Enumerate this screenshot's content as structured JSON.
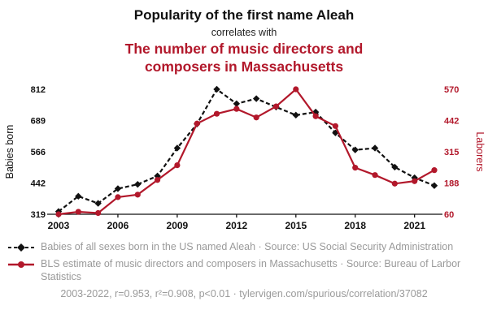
{
  "header": {
    "title": "Popularity of the first name Aleah",
    "subtitle": "correlates with",
    "correlate_title": "The number of music directors and composers in Massachusetts"
  },
  "colors": {
    "accent_red": "#b2182b",
    "text_gray": "#9a9a9a",
    "ink": "#111111"
  },
  "chart_data": {
    "type": "line",
    "title": "Popularity of the first name Aleah correlates with The number of music directors and composers in Massachusetts",
    "x": [
      2003,
      2004,
      2005,
      2006,
      2007,
      2008,
      2009,
      2010,
      2011,
      2012,
      2013,
      2014,
      2015,
      2016,
      2017,
      2018,
      2019,
      2020,
      2021,
      2022
    ],
    "x_ticks": [
      2003,
      2006,
      2009,
      2012,
      2015,
      2018,
      2021
    ],
    "left_axis": {
      "label": "Babies born",
      "ticks": [
        319,
        442,
        566,
        689,
        812
      ],
      "range": [
        319,
        812
      ]
    },
    "right_axis": {
      "label": "Laborers",
      "ticks": [
        60,
        188,
        315,
        442,
        570
      ],
      "range": [
        60,
        570
      ],
      "color": "#b2182b"
    },
    "series": [
      {
        "name": "Babies of all sexes born in the US named Aleah",
        "axis": "left",
        "color": "#111111",
        "style": "dashed-diamond",
        "values": [
          330,
          390,
          362,
          420,
          437,
          470,
          580,
          675,
          812,
          755,
          775,
          742,
          710,
          722,
          640,
          573,
          580,
          505,
          463,
          432
        ]
      },
      {
        "name": "BLS estimate of music directors and composers in Massachusetts",
        "axis": "right",
        "color": "#b2182b",
        "style": "solid-circle",
        "values": [
          60,
          70,
          65,
          130,
          140,
          200,
          260,
          430,
          470,
          490,
          455,
          500,
          570,
          460,
          420,
          250,
          220,
          185,
          195,
          240
        ]
      }
    ],
    "grid": false,
    "legend_position": "bottom"
  },
  "legend": [
    {
      "marker": "black-diamond-dashed",
      "text": "Babies of all sexes born in the US named Aleah · Source: US Social Security Administration"
    },
    {
      "marker": "red-circle-solid",
      "text": "BLS estimate of music directors and composers in Massachusetts · Source: Bureau of Larbor Statistics"
    }
  ],
  "footer": {
    "stats": "2003-2022, r=0.953, r²=0.908, p<0.01 · tylervigen.com/spurious/correlation/37082"
  }
}
